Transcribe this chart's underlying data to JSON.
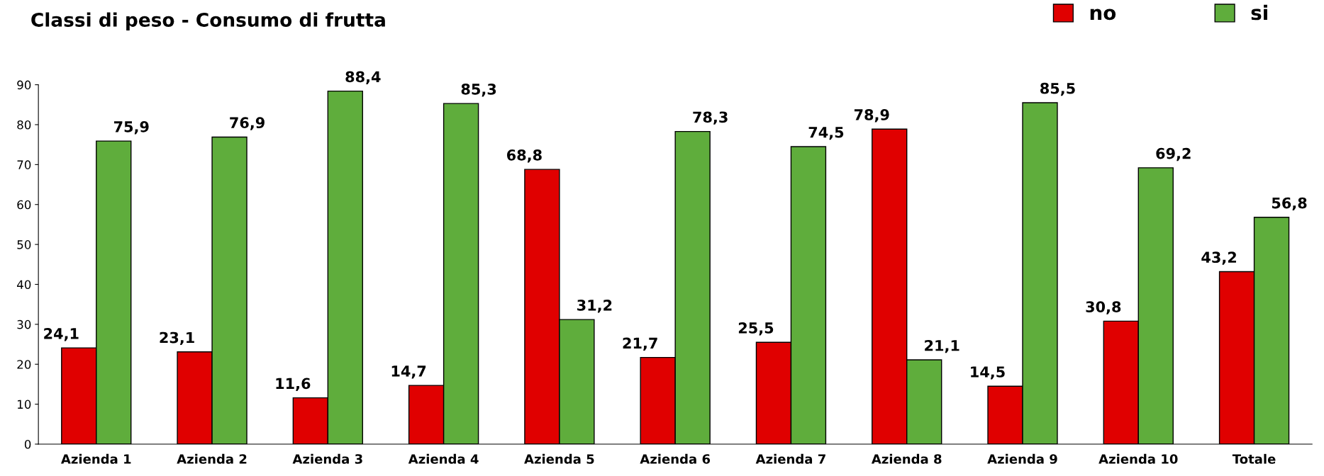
{
  "chart_data": {
    "type": "bar",
    "title": "Classi di peso - Consumo di frutta",
    "categories": [
      "Azienda 1",
      "Azienda 2",
      "Azienda 3",
      "Azienda 4",
      "Azienda 5",
      "Azienda 6",
      "Azienda 7",
      "Azienda 8",
      "Azienda 9",
      "Azienda 10",
      "Totale"
    ],
    "series": [
      {
        "name": "no",
        "color": "#e00000",
        "values": [
          24.1,
          23.1,
          11.6,
          14.7,
          68.8,
          21.7,
          25.5,
          78.9,
          14.5,
          30.8,
          43.2
        ],
        "value_labels": [
          "24,1",
          "23,1",
          "11,6",
          "14,7",
          "68,8",
          "21,7",
          "25,5",
          "78,9",
          "14,5",
          "30,8",
          "43,2"
        ]
      },
      {
        "name": "si",
        "color": "#5fad3c",
        "values": [
          75.9,
          76.9,
          88.4,
          85.3,
          31.2,
          78.3,
          74.5,
          21.1,
          85.5,
          69.2,
          56.8
        ],
        "value_labels": [
          "75,9",
          "76,9",
          "88,4",
          "85,3",
          "31,2",
          "78,3",
          "74,5",
          "21,1",
          "85,5",
          "69,2",
          "56,8"
        ]
      }
    ],
    "ylim": [
      0,
      90
    ],
    "yticks": [
      0,
      10,
      20,
      30,
      40,
      50,
      60,
      70,
      80,
      90
    ],
    "grid": false,
    "legend": "top right"
  }
}
